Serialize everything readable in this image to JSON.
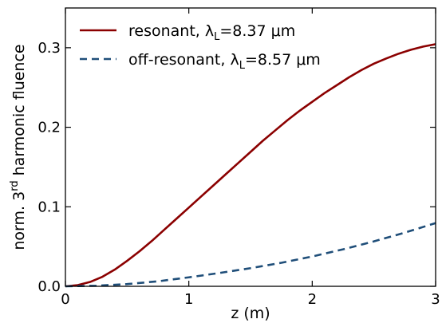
{
  "chart_data": {
    "type": "line",
    "xlabel": "z (m)",
    "ylabel": {
      "prefix": "norm. 3",
      "superscript": "rd",
      "suffix": " harmonic fluence"
    },
    "xlim": [
      0,
      3
    ],
    "ylim": [
      0,
      0.35
    ],
    "xticks": [
      0,
      1,
      2,
      3
    ],
    "xtick_labels": [
      "0",
      "1",
      "2",
      "3"
    ],
    "yticks": [
      0.0,
      0.1,
      0.2,
      0.3
    ],
    "ytick_labels": [
      "0.0",
      "0.1",
      "0.2",
      "0.3"
    ],
    "grid": false,
    "legend_position": "top-left",
    "series": [
      {
        "name": "resonant",
        "legend": {
          "text": "resonant, ",
          "lambda": "λ",
          "sub": "L",
          "value": "=8.37 μm"
        },
        "color": "#8b0000",
        "style": "solid",
        "x": [
          0,
          0.1,
          0.2,
          0.3,
          0.4,
          0.5,
          0.6,
          0.7,
          0.8,
          0.9,
          1.0,
          1.1,
          1.2,
          1.3,
          1.4,
          1.5,
          1.6,
          1.7,
          1.8,
          1.9,
          2.0,
          2.1,
          2.2,
          2.3,
          2.4,
          2.5,
          2.6,
          2.7,
          2.8,
          2.9,
          3.0
        ],
        "values": [
          0.0,
          0.0015,
          0.0055,
          0.012,
          0.021,
          0.032,
          0.044,
          0.057,
          0.071,
          0.085,
          0.099,
          0.113,
          0.127,
          0.141,
          0.155,
          0.169,
          0.183,
          0.196,
          0.209,
          0.221,
          0.232,
          0.243,
          0.253,
          0.263,
          0.272,
          0.28,
          0.2865,
          0.2925,
          0.2975,
          0.3015,
          0.3045
        ]
      },
      {
        "name": "off-resonant",
        "legend": {
          "text": "off-resonant, ",
          "lambda": "λ",
          "sub": "L",
          "value": "=8.57 μm"
        },
        "color": "#1f4e79",
        "style": "dashed",
        "x": [
          0,
          0.25,
          0.5,
          0.75,
          1.0,
          1.25,
          1.5,
          1.75,
          2.0,
          2.25,
          2.5,
          2.75,
          3.0
        ],
        "values": [
          0.0,
          0.0007,
          0.0028,
          0.0063,
          0.0113,
          0.0168,
          0.0228,
          0.0296,
          0.0375,
          0.0465,
          0.0565,
          0.0675,
          0.0795
        ]
      }
    ]
  }
}
